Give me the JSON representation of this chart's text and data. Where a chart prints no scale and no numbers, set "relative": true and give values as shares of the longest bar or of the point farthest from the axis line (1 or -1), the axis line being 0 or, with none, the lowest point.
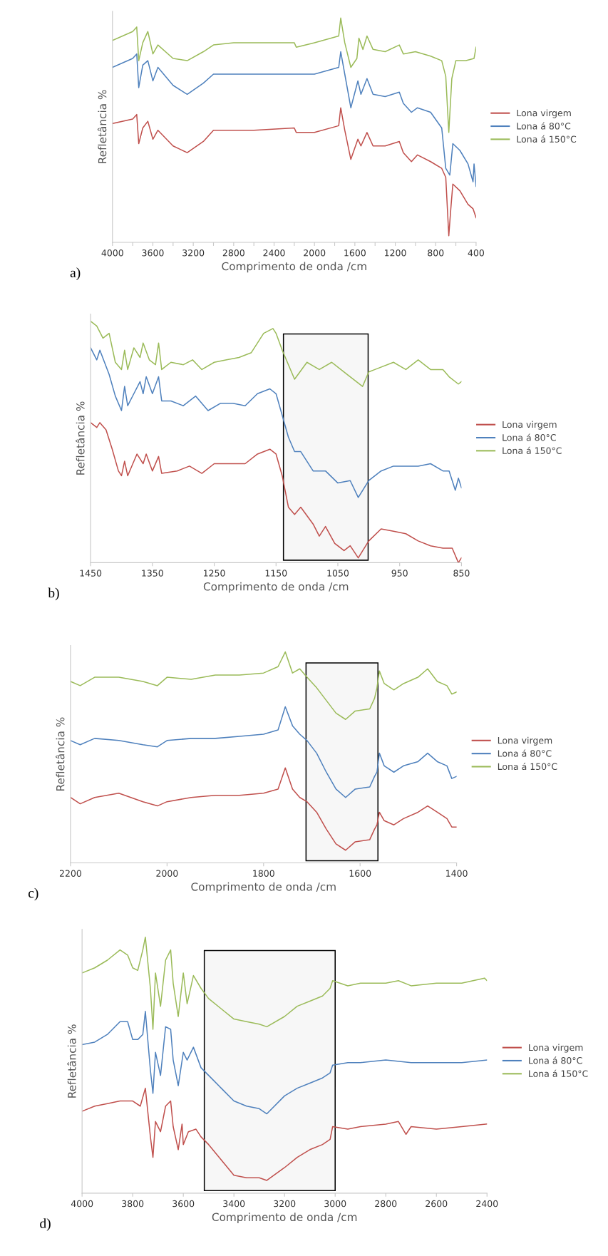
{
  "chart_data": [
    {
      "type": "line",
      "relative": true,
      "xlabel": "Comprimento de onda /cm",
      "ylabel": "Refletância %",
      "xlim": [
        4000,
        400
      ],
      "xticks": [
        4000,
        {
          "value": 3800,
          "label": null
        },
        3600,
        {
          "value": 3400,
          "label": null
        },
        3200,
        {
          "value": 3000,
          "label": null
        },
        2800,
        {
          "value": 2600,
          "label": null
        },
        2400,
        {
          "value": 2200,
          "label": null
        },
        2000,
        {
          "value": 1800,
          "label": null
        },
        1600,
        {
          "value": 1400,
          "label": null
        },
        1200,
        {
          "value": 1000,
          "label": null
        },
        800,
        {
          "value": 600,
          "label": null
        },
        400
      ],
      "legend": "right",
      "grid": false,
      "annotations": [
        "a)"
      ],
      "series": [
        {
          "name": "Lona virgem",
          "color": "#c0504d",
          "x": [
            4000,
            3800,
            3760,
            3740,
            3700,
            3650,
            3600,
            3550,
            3400,
            3260,
            3100,
            3000,
            2600,
            2200,
            2180,
            2000,
            1760,
            1740,
            1700,
            1640,
            1570,
            1540,
            1480,
            1420,
            1300,
            1160,
            1120,
            1040,
            980,
            850,
            740,
            700,
            670,
            650,
            630,
            560,
            480,
            430,
            400
          ],
          "values": [
            0.53,
            0.55,
            0.57,
            0.44,
            0.51,
            0.54,
            0.46,
            0.5,
            0.43,
            0.4,
            0.45,
            0.5,
            0.5,
            0.51,
            0.49,
            0.49,
            0.52,
            0.6,
            0.5,
            0.37,
            0.46,
            0.43,
            0.49,
            0.43,
            0.43,
            0.45,
            0.4,
            0.36,
            0.39,
            0.36,
            0.33,
            0.29,
            0.03,
            0.15,
            0.26,
            0.23,
            0.17,
            0.15,
            0.11
          ]
        },
        {
          "name": "Lona á 80°C",
          "color": "#4f81bd",
          "x": [
            4000,
            3800,
            3760,
            3740,
            3700,
            3650,
            3600,
            3550,
            3400,
            3260,
            3100,
            3000,
            2600,
            2200,
            2000,
            1760,
            1740,
            1700,
            1640,
            1570,
            1540,
            1480,
            1420,
            1300,
            1160,
            1120,
            1040,
            980,
            850,
            740,
            700,
            660,
            630,
            560,
            480,
            430,
            420,
            400
          ],
          "values": [
            0.78,
            0.82,
            0.84,
            0.69,
            0.79,
            0.81,
            0.72,
            0.78,
            0.7,
            0.66,
            0.71,
            0.75,
            0.75,
            0.75,
            0.75,
            0.78,
            0.85,
            0.75,
            0.6,
            0.72,
            0.66,
            0.73,
            0.66,
            0.65,
            0.67,
            0.62,
            0.58,
            0.6,
            0.58,
            0.51,
            0.33,
            0.3,
            0.44,
            0.41,
            0.35,
            0.27,
            0.35,
            0.25
          ]
        },
        {
          "name": "Lona á 150°C",
          "color": "#9bbb59",
          "x": [
            4000,
            3800,
            3760,
            3740,
            3700,
            3650,
            3600,
            3550,
            3400,
            3260,
            3100,
            3000,
            2800,
            2400,
            2200,
            2180,
            2000,
            1760,
            1740,
            1700,
            1640,
            1580,
            1560,
            1520,
            1480,
            1420,
            1300,
            1160,
            1120,
            1000,
            850,
            740,
            700,
            670,
            640,
            600,
            560,
            500,
            420,
            400
          ],
          "values": [
            0.9,
            0.94,
            0.96,
            0.81,
            0.89,
            0.94,
            0.84,
            0.88,
            0.82,
            0.81,
            0.85,
            0.88,
            0.89,
            0.89,
            0.89,
            0.87,
            0.89,
            0.92,
            1.0,
            0.89,
            0.78,
            0.82,
            0.91,
            0.86,
            0.92,
            0.86,
            0.85,
            0.88,
            0.84,
            0.85,
            0.83,
            0.81,
            0.74,
            0.49,
            0.73,
            0.81,
            0.81,
            0.81,
            0.82,
            0.87
          ]
        }
      ]
    },
    {
      "type": "line",
      "relative": true,
      "xlabel": "Comprimento de onda /cm",
      "ylabel": "Refletância %",
      "xlim": [
        1450,
        850
      ],
      "xticks": [
        1450,
        1350,
        1250,
        1150,
        1050,
        950,
        850
      ],
      "legend": "right",
      "grid": false,
      "annotations": [
        "b)"
      ],
      "bands": [
        {
          "axis": "x",
          "from": 1138,
          "to": 1001
        }
      ],
      "series": [
        {
          "name": "Lona virgem",
          "color": "#c0504d",
          "x": [
            1450,
            1440,
            1435,
            1425,
            1415,
            1405,
            1400,
            1395,
            1390,
            1375,
            1365,
            1360,
            1350,
            1340,
            1335,
            1310,
            1290,
            1270,
            1250,
            1220,
            1200,
            1180,
            1160,
            1150,
            1140,
            1130,
            1120,
            1110,
            1090,
            1080,
            1070,
            1055,
            1040,
            1030,
            1017,
            1000,
            980,
            960,
            940,
            920,
            900,
            880,
            865,
            855,
            850
          ],
          "values": [
            0.58,
            0.56,
            0.58,
            0.55,
            0.47,
            0.38,
            0.36,
            0.42,
            0.36,
            0.45,
            0.41,
            0.45,
            0.38,
            0.44,
            0.37,
            0.38,
            0.4,
            0.37,
            0.41,
            0.41,
            0.41,
            0.45,
            0.47,
            0.45,
            0.36,
            0.23,
            0.2,
            0.23,
            0.16,
            0.11,
            0.15,
            0.08,
            0.05,
            0.07,
            0.02,
            0.09,
            0.14,
            0.13,
            0.12,
            0.09,
            0.07,
            0.06,
            0.06,
            0.0,
            0.02
          ]
        },
        {
          "name": "Lona á 80°C",
          "color": "#4f81bd",
          "x": [
            1450,
            1440,
            1435,
            1420,
            1410,
            1400,
            1395,
            1390,
            1380,
            1370,
            1365,
            1360,
            1350,
            1340,
            1335,
            1320,
            1300,
            1280,
            1260,
            1240,
            1220,
            1200,
            1180,
            1160,
            1150,
            1140,
            1130,
            1120,
            1110,
            1090,
            1070,
            1050,
            1030,
            1017,
            1000,
            980,
            960,
            940,
            920,
            900,
            880,
            870,
            860,
            855,
            850
          ],
          "values": [
            0.89,
            0.84,
            0.88,
            0.78,
            0.69,
            0.63,
            0.73,
            0.65,
            0.7,
            0.75,
            0.7,
            0.77,
            0.7,
            0.77,
            0.67,
            0.67,
            0.65,
            0.69,
            0.63,
            0.66,
            0.66,
            0.65,
            0.7,
            0.72,
            0.7,
            0.61,
            0.52,
            0.46,
            0.46,
            0.38,
            0.38,
            0.33,
            0.34,
            0.27,
            0.34,
            0.38,
            0.4,
            0.4,
            0.4,
            0.41,
            0.38,
            0.38,
            0.3,
            0.35,
            0.31
          ]
        },
        {
          "name": "Lona á 150°C",
          "color": "#9bbb59",
          "x": [
            1450,
            1440,
            1430,
            1420,
            1410,
            1400,
            1395,
            1390,
            1380,
            1370,
            1365,
            1355,
            1345,
            1340,
            1335,
            1320,
            1300,
            1285,
            1270,
            1250,
            1230,
            1210,
            1190,
            1180,
            1170,
            1155,
            1150,
            1140,
            1120,
            1100,
            1080,
            1060,
            1040,
            1020,
            1010,
            1000,
            990,
            960,
            940,
            920,
            900,
            880,
            870,
            855,
            850
          ],
          "values": [
            1.0,
            0.98,
            0.93,
            0.95,
            0.83,
            0.8,
            0.88,
            0.8,
            0.89,
            0.85,
            0.91,
            0.84,
            0.82,
            0.91,
            0.8,
            0.83,
            0.82,
            0.84,
            0.8,
            0.83,
            0.84,
            0.85,
            0.87,
            0.91,
            0.95,
            0.97,
            0.95,
            0.88,
            0.76,
            0.83,
            0.8,
            0.83,
            0.79,
            0.75,
            0.73,
            0.79,
            0.8,
            0.83,
            0.8,
            0.84,
            0.8,
            0.8,
            0.77,
            0.74,
            0.75
          ]
        }
      ]
    },
    {
      "type": "line",
      "relative": true,
      "xlabel": "Comprimento de onda /cm",
      "ylabel": "Refletância %",
      "xlim": [
        2200,
        1400
      ],
      "xticks": [
        2200,
        2000,
        1800,
        1600,
        1400
      ],
      "legend": "right",
      "grid": false,
      "annotations": [
        "c)"
      ],
      "bands": [
        {
          "axis": "x",
          "from": 1712,
          "to": 1563
        }
      ],
      "series": [
        {
          "name": "Lona virgem",
          "color": "#c0504d",
          "x": [
            2200,
            2180,
            2150,
            2100,
            2050,
            2020,
            2000,
            1950,
            1900,
            1850,
            1800,
            1770,
            1755,
            1740,
            1725,
            1710,
            1690,
            1670,
            1650,
            1630,
            1610,
            1580,
            1570,
            1565,
            1560,
            1550,
            1530,
            1510,
            1480,
            1460,
            1440,
            1420,
            1410,
            1400
          ],
          "values": [
            0.31,
            0.28,
            0.31,
            0.33,
            0.29,
            0.27,
            0.29,
            0.31,
            0.32,
            0.32,
            0.33,
            0.35,
            0.45,
            0.35,
            0.31,
            0.29,
            0.24,
            0.16,
            0.09,
            0.06,
            0.1,
            0.11,
            0.16,
            0.18,
            0.24,
            0.2,
            0.18,
            0.21,
            0.24,
            0.27,
            0.24,
            0.21,
            0.17,
            0.17
          ]
        },
        {
          "name": "Lona á 80°C",
          "color": "#4f81bd",
          "x": [
            2200,
            2180,
            2150,
            2100,
            2050,
            2020,
            2000,
            1950,
            1900,
            1850,
            1800,
            1770,
            1755,
            1740,
            1725,
            1710,
            1690,
            1670,
            1650,
            1630,
            1610,
            1580,
            1570,
            1565,
            1560,
            1550,
            1530,
            1510,
            1480,
            1460,
            1440,
            1420,
            1410,
            1400
          ],
          "values": [
            0.58,
            0.56,
            0.59,
            0.58,
            0.56,
            0.55,
            0.58,
            0.59,
            0.59,
            0.6,
            0.61,
            0.63,
            0.74,
            0.65,
            0.61,
            0.58,
            0.52,
            0.43,
            0.35,
            0.31,
            0.35,
            0.36,
            0.41,
            0.43,
            0.52,
            0.46,
            0.43,
            0.46,
            0.48,
            0.52,
            0.48,
            0.46,
            0.4,
            0.41
          ]
        },
        {
          "name": "Lona á 150°C",
          "color": "#9bbb59",
          "x": [
            2200,
            2180,
            2150,
            2100,
            2050,
            2020,
            2000,
            1950,
            1900,
            1850,
            1800,
            1770,
            1755,
            1740,
            1725,
            1710,
            1690,
            1670,
            1650,
            1630,
            1610,
            1580,
            1570,
            1565,
            1560,
            1550,
            1530,
            1510,
            1480,
            1460,
            1440,
            1420,
            1410,
            1400
          ],
          "values": [
            0.86,
            0.84,
            0.88,
            0.88,
            0.86,
            0.84,
            0.88,
            0.87,
            0.89,
            0.89,
            0.9,
            0.93,
            1.0,
            0.9,
            0.92,
            0.88,
            0.83,
            0.77,
            0.71,
            0.68,
            0.72,
            0.73,
            0.78,
            0.83,
            0.91,
            0.85,
            0.82,
            0.85,
            0.88,
            0.92,
            0.86,
            0.84,
            0.8,
            0.81
          ]
        }
      ]
    },
    {
      "type": "line",
      "relative": true,
      "xlabel": "Comprimento de onda /cm",
      "ylabel": "Refletância %",
      "xlim": [
        4000,
        2400
      ],
      "xticks": [
        4000,
        3800,
        3600,
        3400,
        3200,
        3000,
        2800,
        2600,
        2400
      ],
      "legend": "right",
      "grid": false,
      "annotations": [
        "d)"
      ],
      "bands": [
        {
          "axis": "x",
          "from": 3517,
          "to": 3000
        }
      ],
      "series": [
        {
          "name": "Lona virgem",
          "color": "#c0504d",
          "x": [
            4000,
            3950,
            3900,
            3850,
            3800,
            3770,
            3750,
            3730,
            3720,
            3710,
            3690,
            3670,
            3650,
            3640,
            3620,
            3605,
            3600,
            3580,
            3550,
            3530,
            3500,
            3450,
            3400,
            3350,
            3300,
            3270,
            3200,
            3150,
            3100,
            3050,
            3020,
            3010,
            2950,
            2900,
            2800,
            2750,
            2720,
            2700,
            2600,
            2500,
            2400
          ],
          "values": [
            0.32,
            0.34,
            0.35,
            0.36,
            0.36,
            0.34,
            0.41,
            0.22,
            0.14,
            0.28,
            0.24,
            0.34,
            0.36,
            0.26,
            0.17,
            0.27,
            0.19,
            0.24,
            0.25,
            0.22,
            0.19,
            0.13,
            0.07,
            0.06,
            0.06,
            0.05,
            0.1,
            0.14,
            0.17,
            0.19,
            0.21,
            0.26,
            0.25,
            0.26,
            0.27,
            0.28,
            0.23,
            0.26,
            0.25,
            0.26,
            0.27
          ]
        },
        {
          "name": "Lona á 80°C",
          "color": "#4f81bd",
          "x": [
            4000,
            3950,
            3900,
            3850,
            3820,
            3800,
            3780,
            3760,
            3750,
            3730,
            3720,
            3710,
            3690,
            3670,
            3650,
            3640,
            3620,
            3600,
            3585,
            3560,
            3530,
            3500,
            3450,
            3400,
            3350,
            3300,
            3270,
            3200,
            3150,
            3100,
            3050,
            3020,
            3010,
            2950,
            2900,
            2800,
            2700,
            2600,
            2500,
            2400
          ],
          "values": [
            0.58,
            0.59,
            0.62,
            0.67,
            0.67,
            0.6,
            0.6,
            0.62,
            0.71,
            0.48,
            0.39,
            0.55,
            0.46,
            0.65,
            0.64,
            0.52,
            0.42,
            0.55,
            0.52,
            0.57,
            0.49,
            0.46,
            0.41,
            0.36,
            0.34,
            0.33,
            0.31,
            0.38,
            0.41,
            0.43,
            0.45,
            0.47,
            0.5,
            0.51,
            0.51,
            0.52,
            0.51,
            0.51,
            0.51,
            0.52
          ]
        },
        {
          "name": "Lona á 150°C",
          "color": "#9bbb59",
          "x": [
            4000,
            3950,
            3900,
            3850,
            3820,
            3800,
            3780,
            3760,
            3750,
            3730,
            3720,
            3710,
            3690,
            3670,
            3650,
            3640,
            3620,
            3600,
            3585,
            3560,
            3530,
            3500,
            3450,
            3400,
            3350,
            3300,
            3270,
            3200,
            3150,
            3100,
            3050,
            3020,
            3010,
            2950,
            2900,
            2800,
            2750,
            2700,
            2600,
            2500,
            2410,
            2400
          ],
          "values": [
            0.86,
            0.88,
            0.91,
            0.95,
            0.93,
            0.88,
            0.87,
            0.95,
            1.0,
            0.8,
            0.64,
            0.86,
            0.73,
            0.91,
            0.95,
            0.82,
            0.69,
            0.86,
            0.74,
            0.85,
            0.8,
            0.76,
            0.72,
            0.68,
            0.67,
            0.66,
            0.65,
            0.69,
            0.73,
            0.75,
            0.77,
            0.8,
            0.83,
            0.81,
            0.82,
            0.82,
            0.83,
            0.81,
            0.82,
            0.82,
            0.84,
            0.83
          ]
        }
      ]
    }
  ]
}
